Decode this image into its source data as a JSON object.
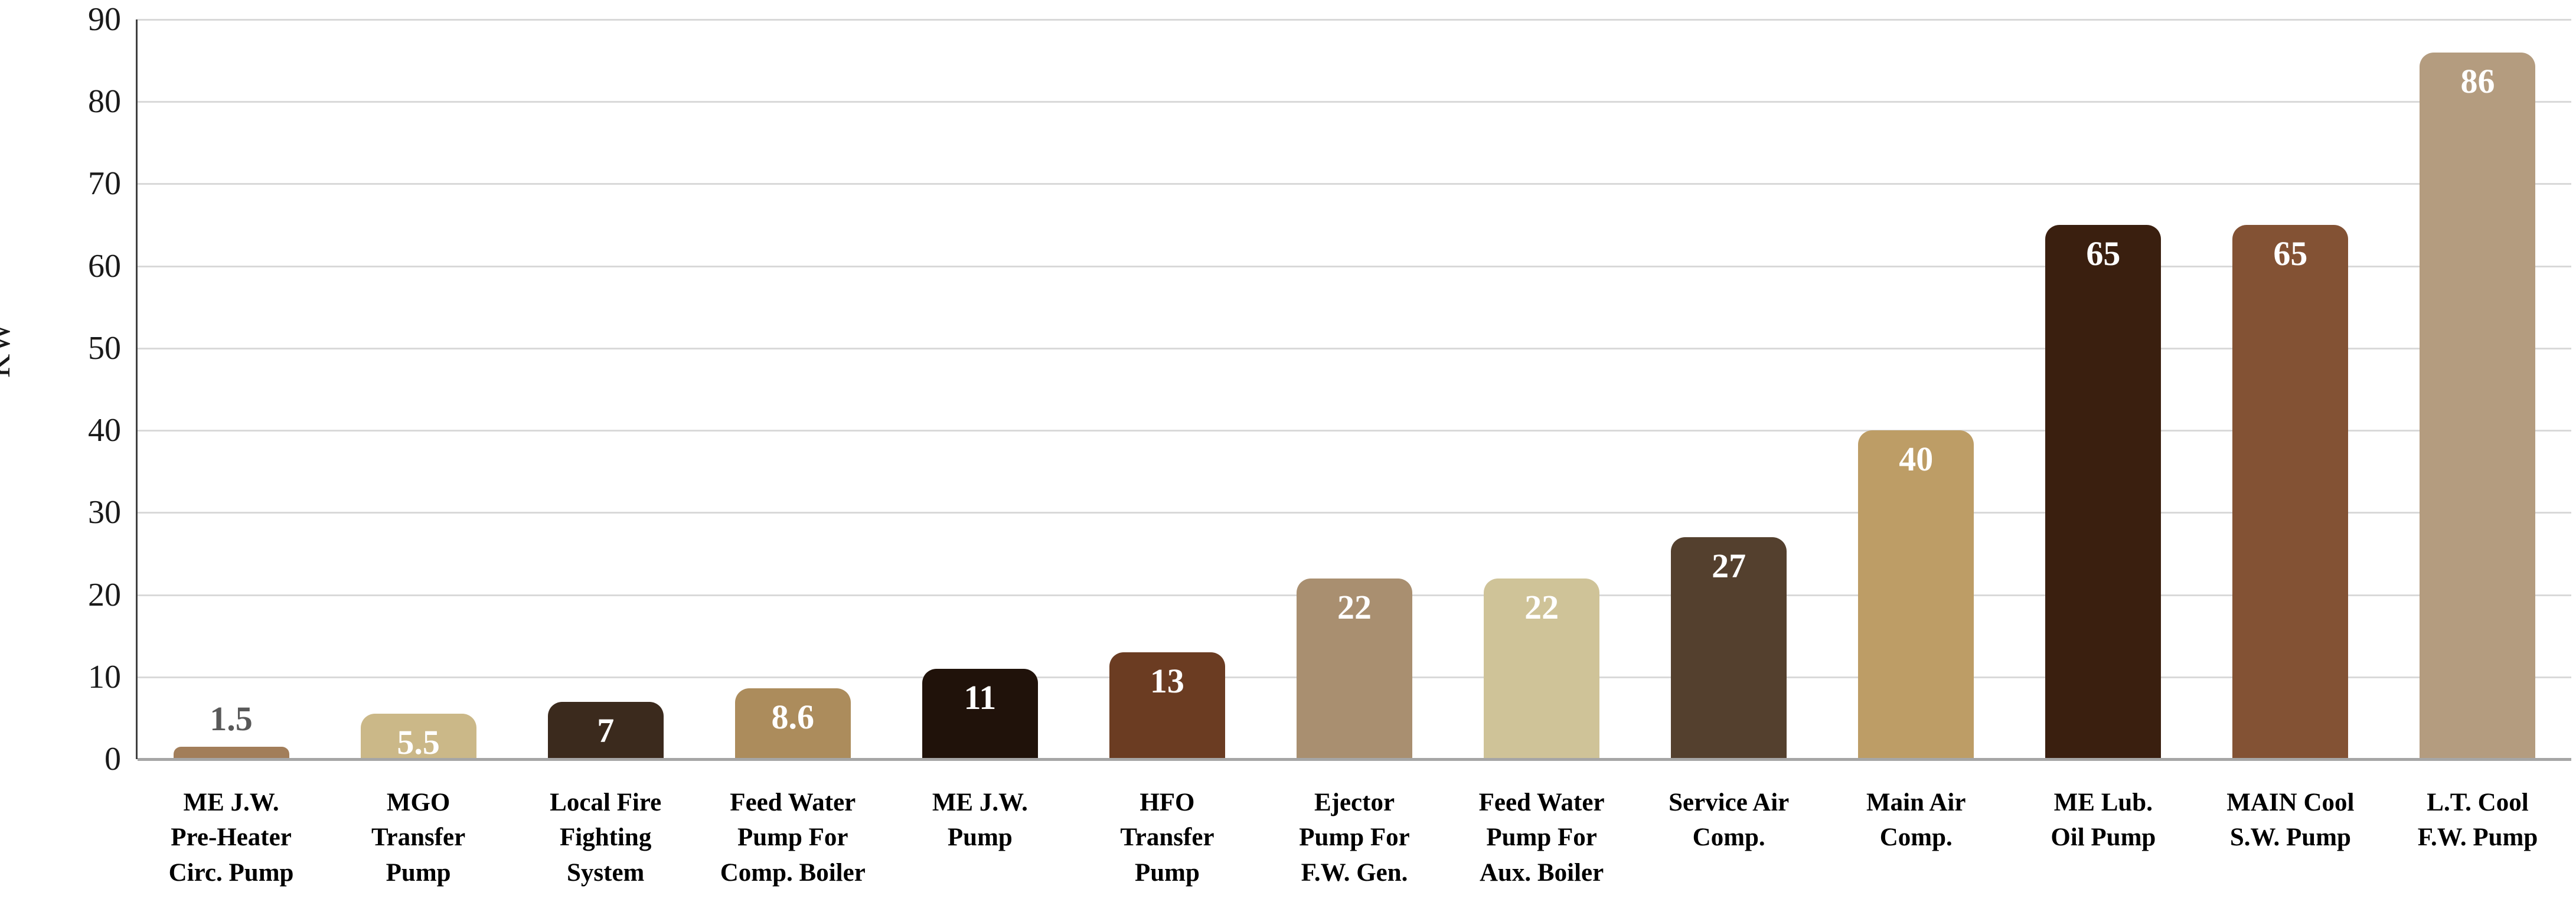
{
  "chart_data": {
    "type": "bar",
    "title": "",
    "xlabel": "",
    "ylabel": "KW",
    "ylim": [
      0,
      90
    ],
    "yticks": [
      0,
      10,
      20,
      30,
      40,
      50,
      60,
      70,
      80,
      90
    ],
    "grid": true,
    "legend": false,
    "categories": [
      "ME J.W.\nPre-Heater\nCirc. Pump",
      "MGO\nTransfer\nPump",
      "Local Fire\nFighting\nSystem",
      "Feed Water\nPump For\nComp. Boiler",
      "ME J.W.\nPump",
      "HFO\nTransfer\nPump",
      "Ejector\nPump For\nF.W. Gen.",
      "Feed Water\nPump For\nAux. Boiler",
      "Service Air\nComp.",
      "Main Air\nComp.",
      "ME Lub.\nOil Pump",
      "MAIN Cool\nS.W. Pump",
      "L.T. Cool\nF.W. Pump"
    ],
    "values": [
      1.5,
      5.5,
      7,
      8.6,
      11,
      13,
      22,
      22,
      27,
      40,
      65,
      65,
      86
    ],
    "value_labels": [
      "1.5",
      "5.5",
      "7",
      "8.6",
      "11",
      "13",
      "22",
      "22",
      "27",
      "40",
      "65",
      "65",
      "86"
    ],
    "bar_colors": [
      "#A27E5A",
      "#CBB888",
      "#3B2A1D",
      "#AC8C5C",
      "#20120A",
      "#6B3C22",
      "#A98F70",
      "#CFC398",
      "#54402E",
      "#BD9D66",
      "#3A1F0F",
      "#835234",
      "#B49C7F"
    ],
    "value_label_colors": [
      "#595959",
      "#FFFFFF",
      "#FFFFFF",
      "#FFFFFF",
      "#FFFFFF",
      "#FFFFFF",
      "#FFFFFF",
      "#FFFFFF",
      "#FFFFFF",
      "#FFFFFF",
      "#FFFFFF",
      "#FFFFFF",
      "#FFFFFF"
    ],
    "value_label_positions": [
      "above",
      "inside",
      "inside",
      "inside",
      "inside",
      "inside",
      "inside",
      "inside",
      "inside",
      "inside",
      "inside",
      "inside",
      "inside"
    ]
  },
  "axis_style": {
    "tick_color": "#1A1A1A",
    "gridline_color": "#D9D9D9",
    "baseline_color": "#A6A6A6",
    "y_axis_line_color": "#404040"
  }
}
